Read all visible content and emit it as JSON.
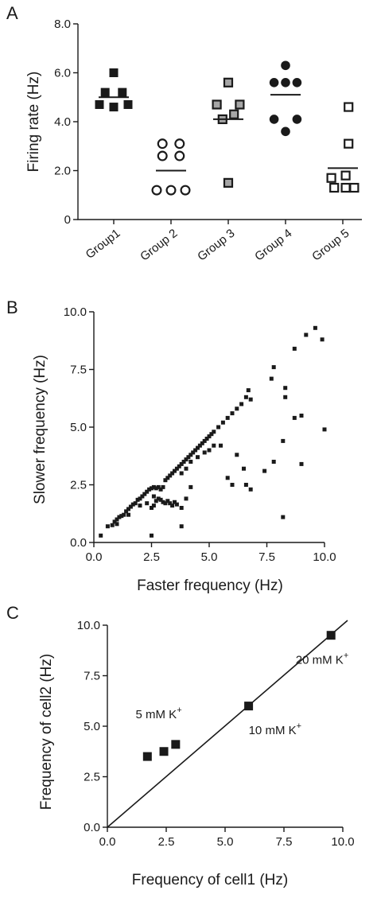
{
  "chart_data": [
    {
      "panel": "A",
      "type": "scatter",
      "ylabel": "Firing rate (Hz)",
      "ylim": [
        0,
        8
      ],
      "yticks": [
        "0",
        "2.0",
        "4.0",
        "6.0",
        "8.0"
      ],
      "categories": [
        "Group1",
        "Group 2",
        "Group 3",
        "Group 4",
        "Group 5"
      ],
      "series": [
        {
          "category": "Group1",
          "marker": "filled-square",
          "mean": 5.0,
          "points": [
            [
              0,
              6.0
            ],
            [
              -0.15,
              5.2
            ],
            [
              0.15,
              5.2
            ],
            [
              -0.25,
              4.7
            ],
            [
              0,
              4.6
            ],
            [
              0.25,
              4.7
            ]
          ]
        },
        {
          "category": "Group 2",
          "marker": "open-circle",
          "mean": 2.0,
          "points": [
            [
              -0.15,
              3.1
            ],
            [
              0.15,
              3.1
            ],
            [
              -0.15,
              2.6
            ],
            [
              0.15,
              2.6
            ],
            [
              -0.25,
              1.2
            ],
            [
              0,
              1.2
            ],
            [
              0.25,
              1.2
            ]
          ]
        },
        {
          "category": "Group 3",
          "marker": "gray-square",
          "mean": 4.1,
          "points": [
            [
              0,
              5.6
            ],
            [
              -0.2,
              4.7
            ],
            [
              0.2,
              4.7
            ],
            [
              -0.1,
              4.1
            ],
            [
              0.1,
              4.3
            ],
            [
              0,
              1.5
            ]
          ]
        },
        {
          "category": "Group 4",
          "marker": "filled-circle",
          "mean": 5.1,
          "points": [
            [
              0,
              6.3
            ],
            [
              -0.2,
              5.6
            ],
            [
              0,
              5.6
            ],
            [
              0.2,
              5.6
            ],
            [
              -0.2,
              4.1
            ],
            [
              0.2,
              4.1
            ],
            [
              0,
              3.6
            ]
          ]
        },
        {
          "category": "Group 5",
          "marker": "open-square",
          "mean": 2.1,
          "points": [
            [
              0.1,
              4.6
            ],
            [
              0.1,
              3.1
            ],
            [
              -0.2,
              1.7
            ],
            [
              0.05,
              1.8
            ],
            [
              -0.15,
              1.3
            ],
            [
              0.05,
              1.3
            ],
            [
              0.2,
              1.3
            ]
          ]
        }
      ]
    },
    {
      "panel": "B",
      "type": "scatter",
      "xlabel": "Faster frequency (Hz)",
      "ylabel": "Slower frequency (Hz)",
      "xlim": [
        0,
        10
      ],
      "ylim": [
        0,
        10
      ],
      "xticks": [
        "0.0",
        "2.5",
        "5.0",
        "7.5",
        "10.0"
      ],
      "yticks": [
        "0.0",
        "2.5",
        "5.0",
        "7.5",
        "10.0"
      ],
      "points": [
        [
          0.3,
          0.3
        ],
        [
          0.6,
          0.7
        ],
        [
          0.8,
          0.75
        ],
        [
          0.9,
          0.9
        ],
        [
          1.0,
          1.0
        ],
        [
          1.0,
          0.8
        ],
        [
          1.1,
          1.1
        ],
        [
          1.2,
          1.15
        ],
        [
          1.3,
          1.2
        ],
        [
          1.4,
          1.35
        ],
        [
          1.5,
          1.45
        ],
        [
          1.5,
          1.2
        ],
        [
          1.6,
          1.55
        ],
        [
          1.7,
          1.65
        ],
        [
          1.8,
          1.7
        ],
        [
          1.9,
          1.85
        ],
        [
          2.0,
          1.9
        ],
        [
          2.0,
          1.6
        ],
        [
          2.1,
          2.0
        ],
        [
          2.2,
          2.1
        ],
        [
          2.3,
          2.2
        ],
        [
          2.3,
          1.7
        ],
        [
          2.4,
          2.3
        ],
        [
          2.5,
          2.35
        ],
        [
          2.6,
          2.4
        ],
        [
          2.6,
          2.0
        ],
        [
          2.7,
          2.35
        ],
        [
          2.8,
          2.4
        ],
        [
          2.9,
          2.3
        ],
        [
          3.0,
          2.4
        ],
        [
          2.5,
          1.5
        ],
        [
          2.6,
          1.6
        ],
        [
          2.7,
          1.8
        ],
        [
          2.8,
          1.9
        ],
        [
          2.9,
          1.85
        ],
        [
          3.0,
          1.75
        ],
        [
          3.1,
          1.7
        ],
        [
          3.2,
          1.8
        ],
        [
          3.3,
          1.7
        ],
        [
          3.4,
          1.6
        ],
        [
          3.5,
          1.75
        ],
        [
          3.6,
          1.65
        ],
        [
          3.8,
          1.5
        ],
        [
          4.0,
          1.9
        ],
        [
          4.2,
          2.4
        ],
        [
          2.5,
          0.3
        ],
        [
          3.8,
          0.7
        ],
        [
          3.1,
          2.7
        ],
        [
          3.2,
          2.8
        ],
        [
          3.3,
          2.9
        ],
        [
          3.4,
          3.0
        ],
        [
          3.5,
          3.1
        ],
        [
          3.6,
          3.2
        ],
        [
          3.7,
          3.3
        ],
        [
          3.8,
          3.4
        ],
        [
          3.9,
          3.5
        ],
        [
          4.0,
          3.6
        ],
        [
          4.1,
          3.7
        ],
        [
          4.2,
          3.8
        ],
        [
          4.3,
          3.9
        ],
        [
          4.4,
          4.0
        ],
        [
          4.5,
          4.1
        ],
        [
          4.6,
          4.2
        ],
        [
          4.7,
          4.3
        ],
        [
          4.8,
          4.4
        ],
        [
          4.9,
          4.5
        ],
        [
          5.0,
          4.6
        ],
        [
          5.1,
          4.7
        ],
        [
          5.2,
          4.8
        ],
        [
          3.8,
          3.0
        ],
        [
          4.0,
          3.2
        ],
        [
          4.2,
          3.5
        ],
        [
          4.5,
          3.7
        ],
        [
          4.8,
          3.9
        ],
        [
          5.0,
          4.0
        ],
        [
          5.2,
          4.2
        ],
        [
          5.4,
          5.0
        ],
        [
          5.6,
          5.2
        ],
        [
          5.8,
          5.4
        ],
        [
          6.0,
          5.6
        ],
        [
          6.2,
          5.8
        ],
        [
          6.4,
          6.0
        ],
        [
          6.6,
          6.3
        ],
        [
          6.8,
          6.2
        ],
        [
          6.7,
          6.6
        ],
        [
          5.5,
          4.2
        ],
        [
          5.8,
          2.8
        ],
        [
          6.0,
          2.5
        ],
        [
          6.2,
          3.8
        ],
        [
          6.5,
          3.2
        ],
        [
          6.6,
          2.5
        ],
        [
          6.8,
          2.3
        ],
        [
          7.8,
          7.6
        ],
        [
          7.7,
          7.1
        ],
        [
          8.3,
          6.7
        ],
        [
          8.3,
          6.3
        ],
        [
          8.7,
          8.4
        ],
        [
          9.0,
          5.5
        ],
        [
          8.7,
          5.4
        ],
        [
          9.2,
          9.0
        ],
        [
          9.6,
          9.3
        ],
        [
          9.9,
          8.8
        ],
        [
          10.0,
          4.9
        ],
        [
          8.2,
          4.4
        ],
        [
          7.8,
          3.5
        ],
        [
          8.2,
          1.1
        ],
        [
          9.0,
          3.4
        ],
        [
          7.4,
          3.1
        ]
      ]
    },
    {
      "panel": "C",
      "type": "scatter",
      "xlabel": "Frequency of cell1 (Hz)",
      "ylabel": "Frequency of cell2 (Hz)",
      "xlim": [
        0,
        10
      ],
      "ylim": [
        0,
        10
      ],
      "xticks": [
        "0.0",
        "2.5",
        "5.0",
        "7.5",
        "10.0"
      ],
      "yticks": [
        "0.0",
        "2.5",
        "5.0",
        "7.5",
        "10.0"
      ],
      "points": [
        [
          1.7,
          3.5
        ],
        [
          2.4,
          3.75
        ],
        [
          2.9,
          4.1
        ],
        [
          6.0,
          6.0
        ],
        [
          9.5,
          9.5
        ]
      ],
      "identity_line": [
        [
          0,
          0
        ],
        [
          10,
          10
        ]
      ],
      "annotations": [
        {
          "text": "5 mM K",
          "sup": "+",
          "x": 1.2,
          "y": 5.4
        },
        {
          "text": "10 mM K",
          "sup": "+",
          "x": 6.0,
          "y": 4.6
        },
        {
          "text": "20 mM K",
          "sup": "+",
          "x": 8.0,
          "y": 8.1
        }
      ]
    }
  ],
  "labels": {
    "panel_a": "A",
    "panel_b": "B",
    "panel_c": "C"
  },
  "colors": {
    "ink": "#1a1a1a",
    "gray_fill": "#a6a6a6",
    "white": "#ffffff"
  }
}
